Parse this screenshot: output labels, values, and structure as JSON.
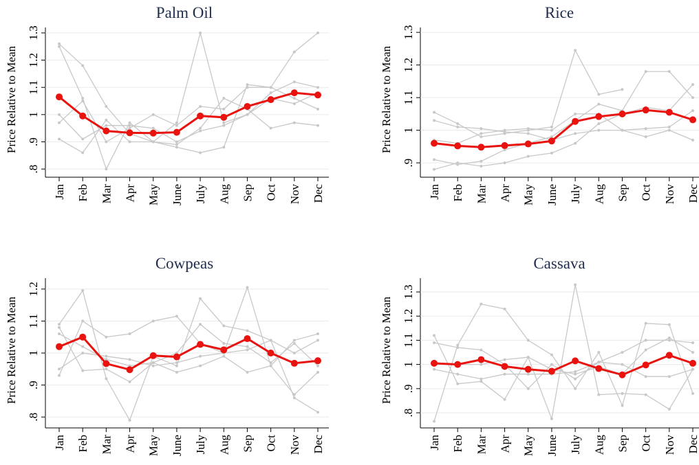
{
  "chart_data": [
    {
      "type": "line",
      "title": "Palm Oil",
      "y_label": "Price Relative to Mean",
      "categories": [
        "Jan",
        "Feb",
        "Mar",
        "Apr",
        "May",
        "June",
        "July",
        "Aug",
        "Sep",
        "Oct",
        "Nov",
        "Dec"
      ],
      "ylim": [
        0.77,
        1.32
      ],
      "yticks": [
        {
          "value": 0.8,
          "label": ".8"
        },
        {
          "value": 0.9,
          "label": ".9"
        },
        1,
        1.1,
        1.2,
        1.3
      ],
      "grid": true,
      "series": [
        {
          "color": "#c8c8c8",
          "marker_size": 2,
          "values": [
            1.26,
            1.18,
            1.03,
            0.93,
            0.9,
            0.88,
            0.86,
            0.88,
            1.11,
            1.1,
            1.23,
            1.3
          ]
        },
        {
          "color": "#c8c8c8",
          "marker_size": 2,
          "values": [
            1.25,
            1.06,
            0.8,
            0.97,
            0.9,
            0.97,
            1.3,
            0.97,
            1.0,
            1.08,
            1.12,
            1.1
          ]
        },
        {
          "color": "#c8c8c8",
          "marker_size": 2,
          "values": [
            0.91,
            0.86,
            0.98,
            0.9,
            0.9,
            0.89,
            0.95,
            1.06,
            1.02,
            0.95,
            0.97,
            0.96
          ]
        },
        {
          "color": "#c8c8c8",
          "marker_size": 2,
          "values": [
            0.97,
            1.05,
            0.9,
            0.95,
            1.0,
            0.96,
            1.03,
            1.02,
            1.1,
            1.1,
            1.06,
            1.02
          ]
        },
        {
          "color": "#c8c8c8",
          "marker_size": 2,
          "values": [
            1.0,
            0.91,
            0.96,
            0.96,
            0.95,
            0.9,
            0.94,
            0.96,
            1.0,
            1.06,
            1.04,
            1.08
          ]
        },
        {
          "color": "#e8120f",
          "marker_size": 5,
          "values": [
            1.065,
            0.995,
            0.94,
            0.933,
            0.932,
            0.935,
            0.995,
            0.99,
            1.03,
            1.055,
            1.08,
            1.072
          ]
        }
      ]
    },
    {
      "type": "line",
      "title": "Rice",
      "y_label": "Price Relative to Mean",
      "categories": [
        "Jan",
        "Feb",
        "Mar",
        "Apr",
        "May",
        "June",
        "July",
        "Aug",
        "Sep",
        "Oct",
        "Nov",
        "Dec"
      ],
      "ylim": [
        0.856,
        1.315
      ],
      "yticks": [
        {
          "value": 0.9,
          "label": ".9"
        },
        1,
        1.1,
        1.2,
        1.3
      ],
      "grid": true,
      "series": [
        {
          "color": "#c8c8c8",
          "marker_size": 2,
          "values": [
            1.055,
            1.02,
            0.98,
            0.99,
            1.0,
            1.01,
            1.245,
            1.11,
            1.125,
            null,
            null,
            null
          ]
        },
        {
          "color": "#c8c8c8",
          "marker_size": 2,
          "values": [
            0.91,
            0.895,
            0.905,
            0.94,
            0.96,
            0.98,
            1.03,
            1.08,
            1.06,
            1.18,
            1.18,
            1.1
          ]
        },
        {
          "color": "#c8c8c8",
          "marker_size": 2,
          "values": [
            0.88,
            0.9,
            0.89,
            0.9,
            0.92,
            0.93,
            0.96,
            1.02,
            1.05,
            1.07,
            1.06,
            1.14
          ]
        },
        {
          "color": "#c8c8c8",
          "marker_size": 2,
          "values": [
            0.97,
            0.96,
            0.99,
            1.0,
            1.005,
            1.0,
            1.05,
            1.05,
            1.0,
            0.98,
            1.0,
            0.97
          ]
        },
        {
          "color": "#c8c8c8",
          "marker_size": 2,
          "values": [
            1.03,
            1.01,
            1.005,
            0.995,
            0.99,
            0.97,
            0.99,
            1.0,
            1.0,
            1.005,
            1.01,
            1.06
          ]
        },
        {
          "color": "#e8120f",
          "marker_size": 5,
          "values": [
            0.96,
            0.952,
            0.948,
            0.953,
            0.958,
            0.967,
            1.027,
            1.042,
            1.05,
            1.062,
            1.055,
            1.032
          ]
        }
      ]
    },
    {
      "type": "line",
      "title": "Cowpeas",
      "y_label": "Price Relative to Mean",
      "categories": [
        "Jan",
        "Feb",
        "Mar",
        "Apr",
        "May",
        "June",
        "July",
        "Aug",
        "Sep",
        "Oct",
        "Nov",
        "Dec"
      ],
      "ylim": [
        0.766,
        1.234
      ],
      "yticks": [
        {
          "value": 0.8,
          "label": ".8"
        },
        {
          "value": 0.9,
          "label": ".9"
        },
        1,
        1.1,
        1.2
      ],
      "grid": true,
      "series": [
        {
          "color": "#c8c8c8",
          "marker_size": 2,
          "values": [
            1.09,
            1.195,
            0.92,
            0.79,
            0.99,
            0.96,
            1.17,
            1.085,
            1.07,
            1.04,
            0.86,
            0.815
          ]
        },
        {
          "color": "#c8c8c8",
          "marker_size": 2,
          "values": [
            0.93,
            1.1,
            1.05,
            1.06,
            1.1,
            1.115,
            1.03,
            1.0,
            1.205,
            0.96,
            1.04,
            1.06
          ]
        },
        {
          "color": "#c8c8c8",
          "marker_size": 2,
          "values": [
            1.08,
            0.945,
            0.95,
            0.91,
            0.97,
            0.94,
            0.96,
            0.99,
            0.94,
            0.96,
            0.87,
            0.94
          ]
        },
        {
          "color": "#c8c8c8",
          "marker_size": 2,
          "values": [
            0.95,
            1.0,
            0.99,
            0.98,
            0.96,
            0.97,
            0.99,
            1.0,
            1.01,
            1.04,
            1.0,
            1.04
          ]
        },
        {
          "color": "#c8c8c8",
          "marker_size": 2,
          "values": [
            1.06,
            1.02,
            0.98,
            0.96,
            0.97,
            1.0,
            1.09,
            1.03,
            1.02,
            0.97,
            1.03,
            0.96
          ]
        },
        {
          "color": "#e8120f",
          "marker_size": 5,
          "values": [
            1.02,
            1.05,
            0.967,
            0.948,
            0.992,
            0.988,
            1.027,
            1.01,
            1.045,
            1.0,
            0.968,
            0.976
          ]
        }
      ]
    },
    {
      "type": "line",
      "title": "Cassava",
      "y_label": "Price Relative to Mean",
      "categories": [
        "Jan",
        "Feb",
        "Mar",
        "Apr",
        "May",
        "June",
        "July",
        "Aug",
        "Sep",
        "Oct",
        "Nov",
        "Dec"
      ],
      "ylim": [
        0.7375,
        1.357
      ],
      "yticks": [
        {
          "value": 0.8,
          "label": ".8"
        },
        {
          "value": 0.9,
          "label": ".9"
        },
        1,
        1.1,
        1.2,
        1.3
      ],
      "grid": true,
      "series": [
        {
          "color": "#c8c8c8",
          "marker_size": 2,
          "values": [
            0.765,
            1.08,
            1.25,
            1.23,
            1.1,
            1.04,
            0.9,
            1.05,
            0.83,
            1.17,
            1.165,
            0.88
          ]
        },
        {
          "color": "#c8c8c8",
          "marker_size": 2,
          "values": [
            1.12,
            0.92,
            0.93,
            0.855,
            1.03,
            0.775,
            1.33,
            0.875,
            0.88,
            0.875,
            0.815,
            0.98
          ]
        },
        {
          "color": "#c8c8c8",
          "marker_size": 2,
          "values": [
            1.09,
            1.07,
            1.06,
            1.0,
            0.9,
            1.0,
            0.94,
            1.01,
            1.05,
            1.1,
            1.1,
            1.09
          ]
        },
        {
          "color": "#c8c8c8",
          "marker_size": 2,
          "values": [
            0.98,
            0.96,
            0.94,
            0.96,
            0.96,
            0.96,
            0.97,
            1.01,
            1.0,
            0.95,
            0.95,
            0.98
          ]
        },
        {
          "color": "#c8c8c8",
          "marker_size": 2,
          "values": [
            1.0,
            1.0,
            1.0,
            1.02,
            1.03,
            0.98,
            0.96,
            0.99,
            0.96,
            1.06,
            1.11,
            1.05
          ]
        },
        {
          "color": "#e8120f",
          "marker_size": 5,
          "values": [
            1.005,
            1.0,
            1.02,
            0.992,
            0.98,
            0.972,
            1.015,
            0.983,
            0.957,
            0.998,
            1.038,
            1.005
          ]
        }
      ]
    }
  ]
}
